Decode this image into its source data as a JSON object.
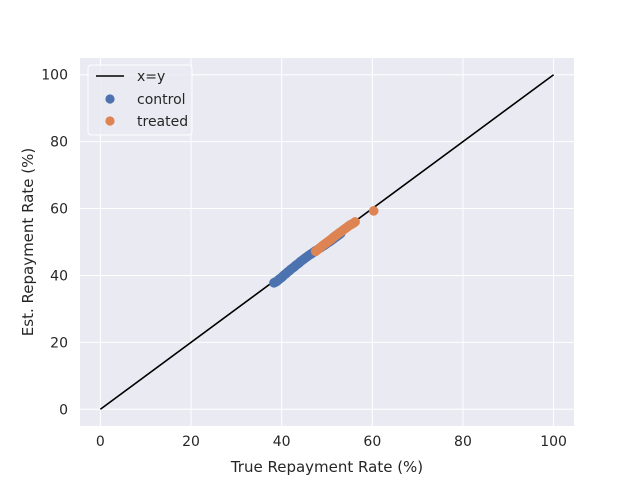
{
  "colors": {
    "plot_bg": "#eaeaf2",
    "grid": "#ffffff",
    "identity": "#000000",
    "control": "#4c72b0",
    "treated": "#dd8452",
    "legend_bg": "#eaeaf2",
    "legend_border": "#ffffff"
  },
  "chart_data": {
    "type": "scatter",
    "title": "",
    "xlabel": "True Repayment Rate (%)",
    "ylabel": "Est. Repayment Rate (%)",
    "xlim": [
      -4.5,
      104.5
    ],
    "ylim": [
      -5,
      105
    ],
    "xticks": [
      0,
      20,
      40,
      60,
      80,
      100
    ],
    "yticks": [
      0,
      20,
      40,
      60,
      80,
      100
    ],
    "grid": true,
    "legend_position": "top-left",
    "identity_line": {
      "name": "x=y",
      "x": [
        0,
        100
      ],
      "y": [
        0,
        100
      ]
    },
    "series": [
      {
        "name": "control",
        "points": [
          [
            38.3,
            37.8
          ],
          [
            38.6,
            38.0
          ],
          [
            39.0,
            38.3
          ],
          [
            39.3,
            38.7
          ],
          [
            39.6,
            39.0
          ],
          [
            40.0,
            39.4
          ],
          [
            40.3,
            39.8
          ],
          [
            40.6,
            40.2
          ],
          [
            41.0,
            40.6
          ],
          [
            41.3,
            41.0
          ],
          [
            41.7,
            41.4
          ],
          [
            42.0,
            41.8
          ],
          [
            42.4,
            42.2
          ],
          [
            42.8,
            42.6
          ],
          [
            43.1,
            43.0
          ],
          [
            43.5,
            43.4
          ],
          [
            43.9,
            43.8
          ],
          [
            44.2,
            44.2
          ],
          [
            44.6,
            44.6
          ],
          [
            45.0,
            45.0
          ],
          [
            45.4,
            45.4
          ],
          [
            45.8,
            45.8
          ],
          [
            46.2,
            46.2
          ],
          [
            46.6,
            46.5
          ],
          [
            47.0,
            46.9
          ],
          [
            47.4,
            47.3
          ],
          [
            47.8,
            47.6
          ],
          [
            48.2,
            48.0
          ],
          [
            48.6,
            48.3
          ],
          [
            49.0,
            48.7
          ],
          [
            49.4,
            49.0
          ],
          [
            49.8,
            49.4
          ],
          [
            50.2,
            49.8
          ],
          [
            50.6,
            50.1
          ],
          [
            51.0,
            50.5
          ],
          [
            51.4,
            50.9
          ],
          [
            51.8,
            51.3
          ],
          [
            52.2,
            51.7
          ],
          [
            52.6,
            52.1
          ],
          [
            53.0,
            52.5
          ]
        ]
      },
      {
        "name": "treated",
        "points": [
          [
            47.5,
            47.2
          ],
          [
            48.0,
            47.8
          ],
          [
            48.5,
            48.3
          ],
          [
            49.0,
            48.9
          ],
          [
            49.5,
            49.4
          ],
          [
            50.0,
            49.9
          ],
          [
            50.5,
            50.4
          ],
          [
            51.0,
            50.9
          ],
          [
            51.4,
            51.4
          ],
          [
            51.8,
            51.8
          ],
          [
            52.2,
            52.2
          ],
          [
            52.6,
            52.6
          ],
          [
            53.0,
            53.0
          ],
          [
            53.4,
            53.4
          ],
          [
            53.8,
            53.8
          ],
          [
            54.2,
            54.2
          ],
          [
            54.6,
            54.6
          ],
          [
            55.0,
            55.0
          ],
          [
            55.4,
            55.3
          ],
          [
            55.8,
            55.6
          ],
          [
            56.2,
            56.0
          ],
          [
            60.3,
            59.3
          ]
        ]
      }
    ]
  }
}
